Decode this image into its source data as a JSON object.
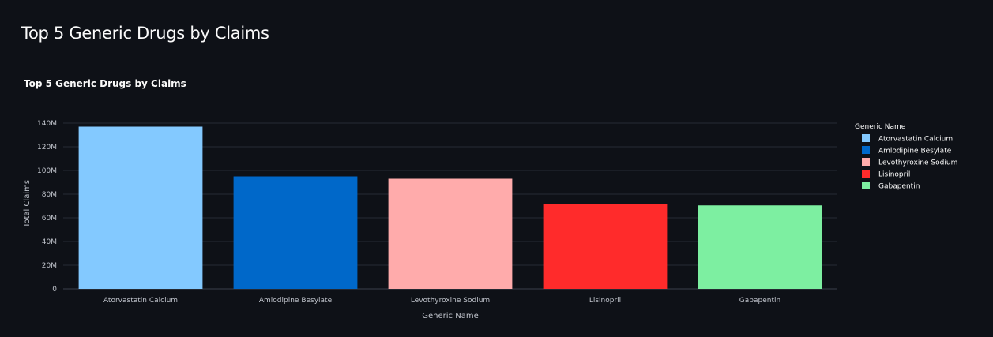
{
  "page": {
    "title": "Top 5 Generic Drugs by Claims"
  },
  "chart_data": {
    "type": "bar",
    "title": "Top 5 Generic Drugs by Claims",
    "xlabel": "Generic Name",
    "ylabel": "Total Claims",
    "ylim": [
      0,
      140000000
    ],
    "yticks": [
      0,
      20000000,
      40000000,
      60000000,
      80000000,
      100000000,
      120000000,
      140000000
    ],
    "ytick_labels": [
      "0",
      "20M",
      "40M",
      "60M",
      "80M",
      "100M",
      "120M",
      "140M"
    ],
    "grid": true,
    "legend": {
      "title": "Generic Name",
      "placement": "right"
    },
    "categories": [
      "Atorvastatin Calcium",
      "Amlodipine Besylate",
      "Levothyroxine Sodium",
      "Lisinopril",
      "Gabapentin"
    ],
    "values": [
      137000000,
      95000000,
      93000000,
      72000000,
      70500000
    ],
    "colors": [
      "#83c9ff",
      "#0068c9",
      "#ffabab",
      "#ff2b2b",
      "#7defa1"
    ]
  }
}
